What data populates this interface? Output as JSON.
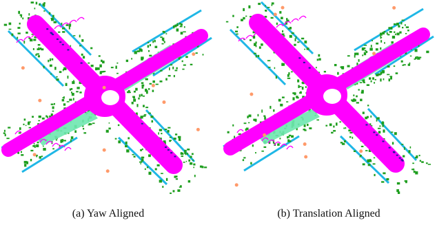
{
  "figure": {
    "panels": [
      {
        "id": "a",
        "caption": "(a)  Yaw Aligned"
      },
      {
        "id": "b",
        "caption": "(b)  Translation Aligned"
      }
    ],
    "colors": {
      "road": "#ff00ff",
      "vegetation": "#1e9e1e",
      "sidewalk": "#6ee7b0",
      "building": "#1fb7e6",
      "car": "#1a1aa0",
      "pole": "#ff9a6a",
      "center": "#ffffff"
    }
  }
}
